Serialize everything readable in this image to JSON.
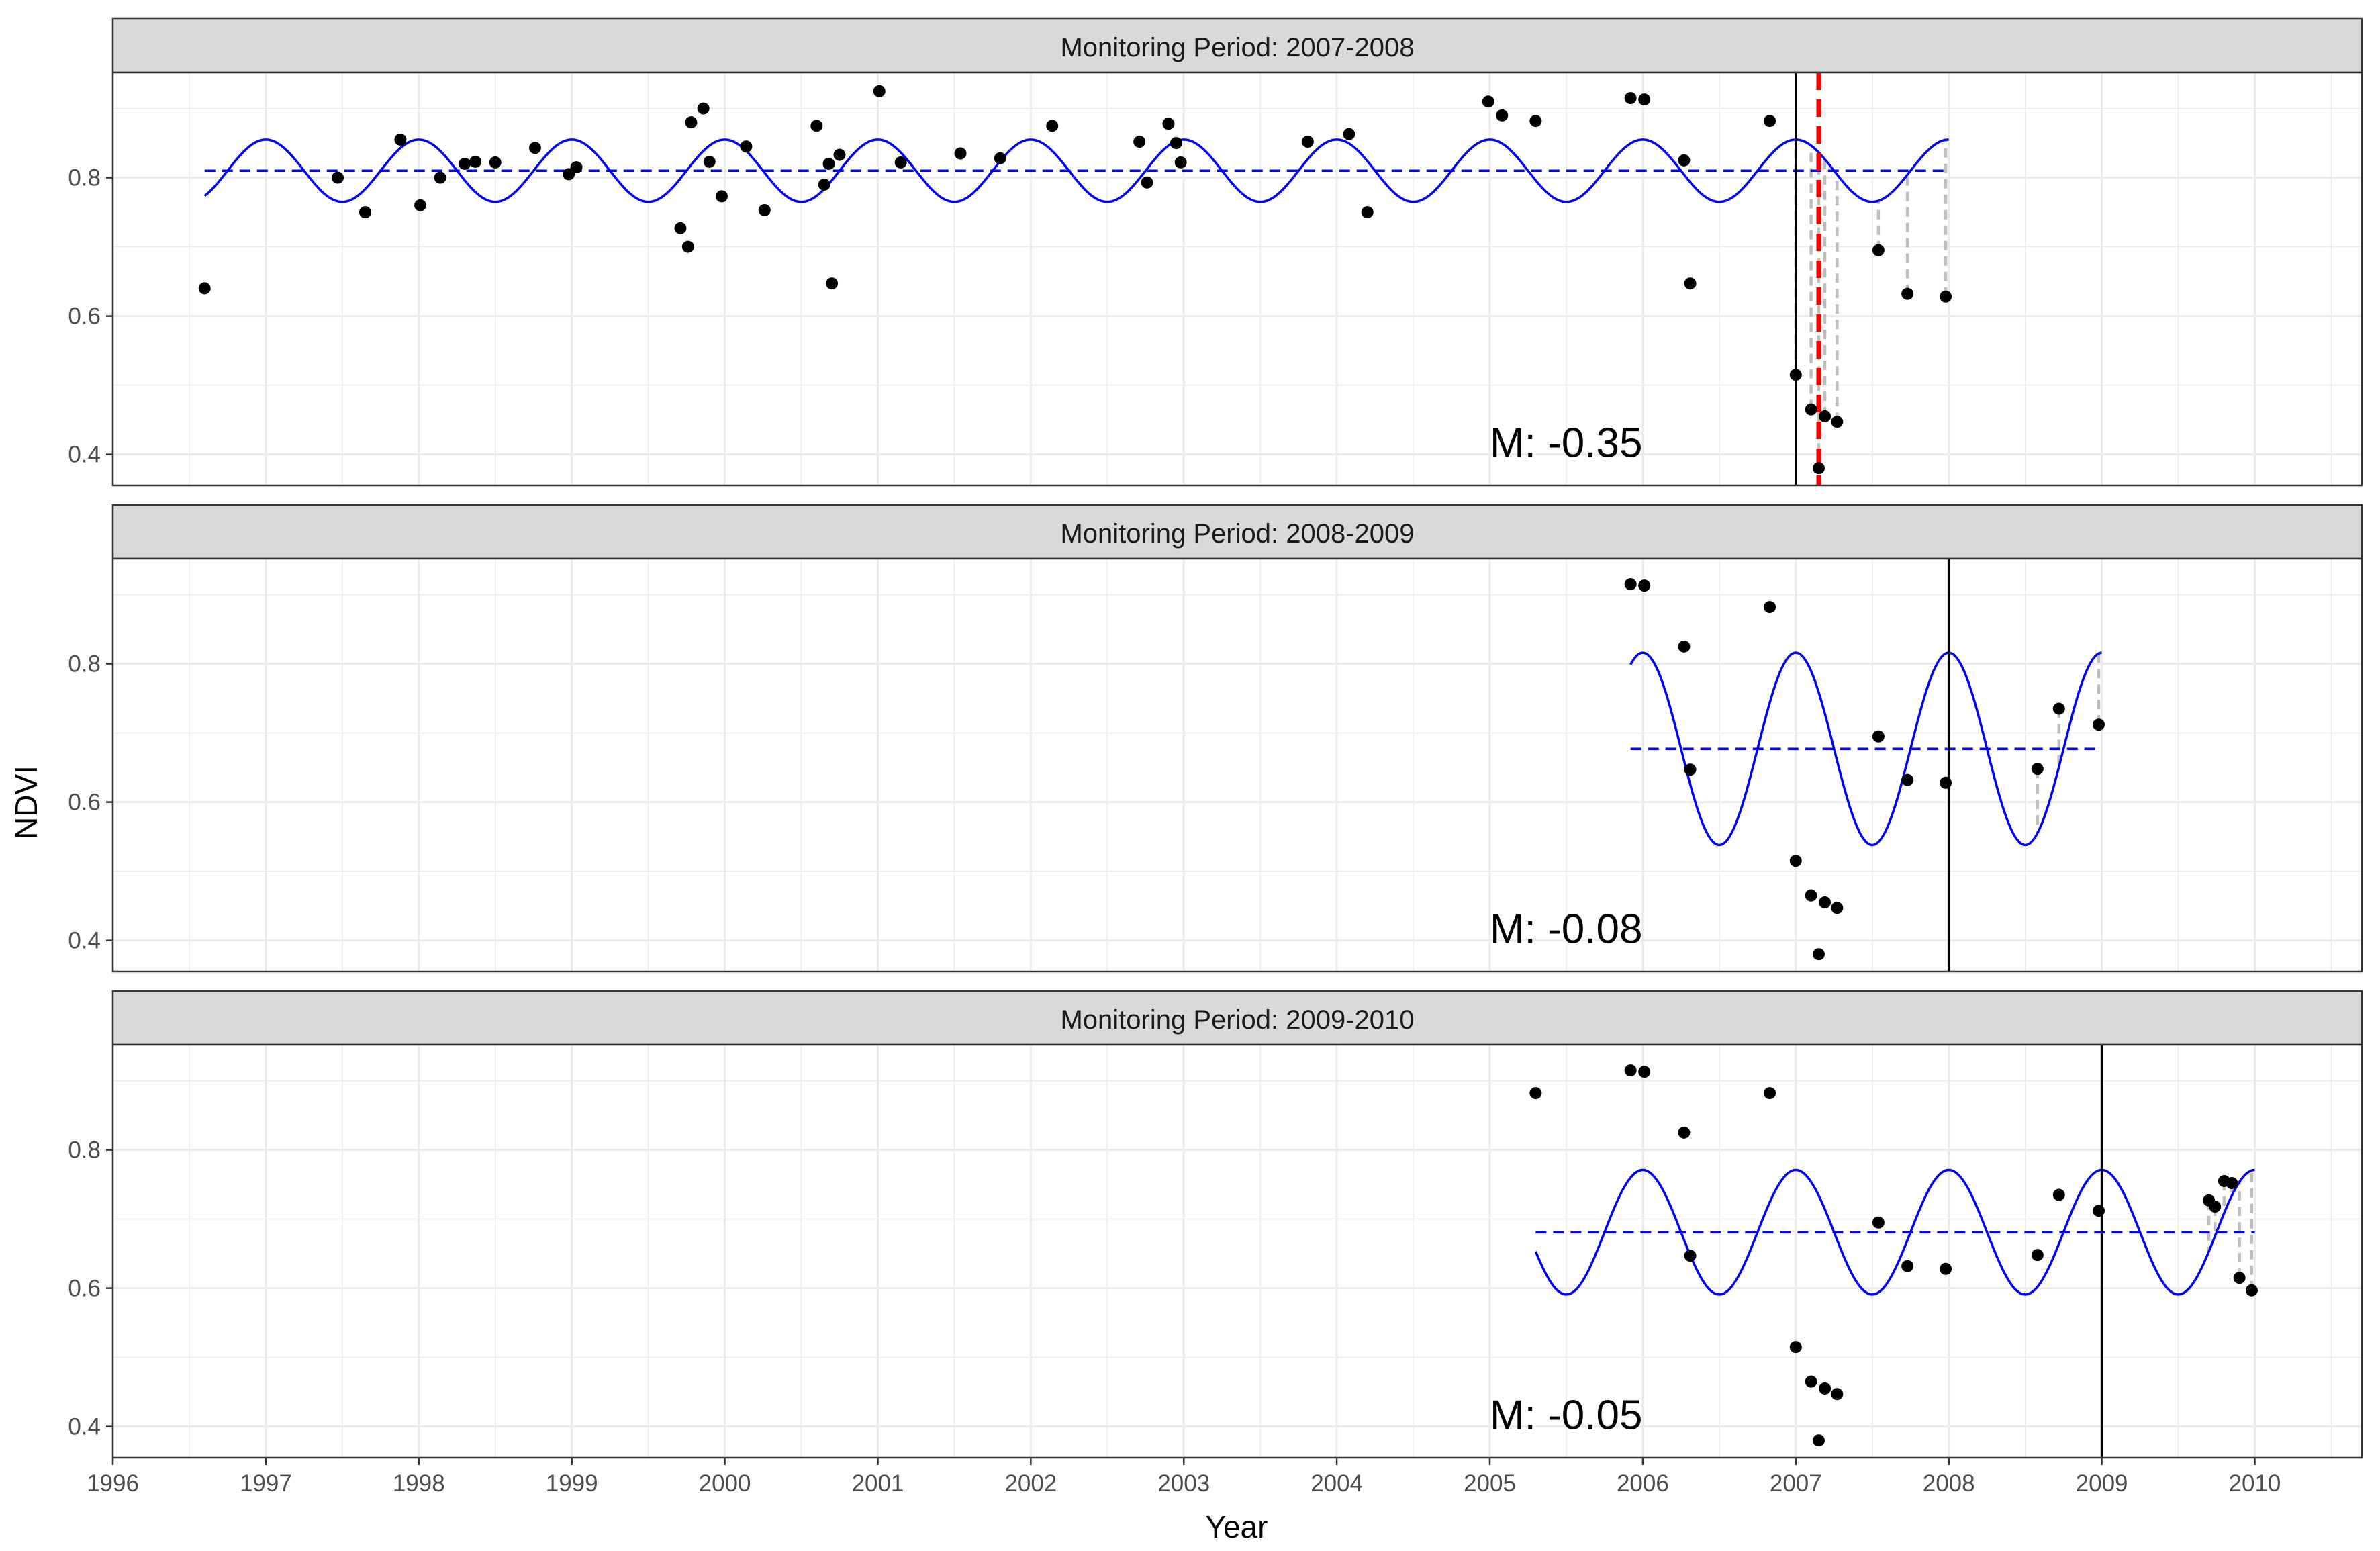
{
  "chart_data": {
    "type": "scatter",
    "xlabel": "Year",
    "ylabel": "NDVI",
    "xlim": [
      1996.0,
      2010.7
    ],
    "ylim": [
      0.355,
      0.952
    ],
    "x_ticks": [
      1996,
      1997,
      1998,
      1999,
      2000,
      2001,
      2002,
      2003,
      2004,
      2005,
      2006,
      2007,
      2008,
      2009,
      2010
    ],
    "y_ticks": [
      0.4,
      0.6,
      0.8
    ],
    "y_tick_labels": [
      "0.4",
      "0.6",
      "0.8"
    ],
    "grid": true,
    "colors": {
      "points": "#000000",
      "fit": "#0000ff",
      "mean": "#0000ff",
      "break": "#ff0000",
      "residual": "#bebebe",
      "strip": "#d9d9d9",
      "grid": "#ebebeb"
    },
    "panels": [
      {
        "label": "Monitoring Period: 2007-2008",
        "annotation": "M: -0.35",
        "history_start": 1996.6,
        "monitor_start": 2007.0,
        "fit_end": 2008.0,
        "mean": 0.81,
        "amplitude": 0.045,
        "break": 2007.15,
        "points": [
          [
            1996.6,
            0.64
          ],
          [
            1997.47,
            0.8
          ],
          [
            1997.65,
            0.75
          ],
          [
            1997.88,
            0.855
          ],
          [
            1998.01,
            0.76
          ],
          [
            1998.14,
            0.8
          ],
          [
            1998.3,
            0.82
          ],
          [
            1998.37,
            0.823
          ],
          [
            1998.5,
            0.822
          ],
          [
            1998.76,
            0.843
          ],
          [
            1998.98,
            0.805
          ],
          [
            1999.03,
            0.815
          ],
          [
            1999.71,
            0.727
          ],
          [
            1999.76,
            0.7
          ],
          [
            1999.78,
            0.88
          ],
          [
            1999.86,
            0.9
          ],
          [
            1999.9,
            0.823
          ],
          [
            1999.98,
            0.773
          ],
          [
            2000.14,
            0.845
          ],
          [
            2000.26,
            0.753
          ],
          [
            2000.6,
            0.875
          ],
          [
            2000.65,
            0.79
          ],
          [
            2000.68,
            0.82
          ],
          [
            2000.7,
            0.647
          ],
          [
            2000.75,
            0.833
          ],
          [
            2001.01,
            0.925
          ],
          [
            2001.15,
            0.822
          ],
          [
            2001.54,
            0.835
          ],
          [
            2001.8,
            0.828
          ],
          [
            2002.14,
            0.875
          ],
          [
            2002.71,
            0.852
          ],
          [
            2002.76,
            0.793
          ],
          [
            2002.9,
            0.878
          ],
          [
            2002.95,
            0.85
          ],
          [
            2002.98,
            0.822
          ],
          [
            2003.81,
            0.852
          ],
          [
            2004.08,
            0.863
          ],
          [
            2004.2,
            0.75
          ],
          [
            2004.99,
            0.91
          ],
          [
            2005.08,
            0.89
          ],
          [
            2005.3,
            0.882
          ],
          [
            2005.92,
            0.915
          ],
          [
            2006.01,
            0.913
          ],
          [
            2006.27,
            0.825
          ],
          [
            2006.31,
            0.647
          ],
          [
            2006.83,
            0.882
          ],
          [
            2007.0,
            0.515
          ],
          [
            2007.1,
            0.465
          ],
          [
            2007.15,
            0.38
          ],
          [
            2007.19,
            0.455
          ],
          [
            2007.27,
            0.447
          ],
          [
            2007.54,
            0.695
          ],
          [
            2007.73,
            0.632
          ],
          [
            2007.98,
            0.628
          ]
        ]
      },
      {
        "label": "Monitoring Period: 2008-2009",
        "annotation": "M: -0.08",
        "history_start": 2005.92,
        "monitor_start": 2008.0,
        "fit_end": 2009.0,
        "mean": 0.677,
        "amplitude": 0.139,
        "points": [
          [
            2005.92,
            0.915
          ],
          [
            2006.01,
            0.913
          ],
          [
            2006.27,
            0.825
          ],
          [
            2006.31,
            0.647
          ],
          [
            2006.83,
            0.882
          ],
          [
            2007.0,
            0.515
          ],
          [
            2007.1,
            0.465
          ],
          [
            2007.15,
            0.38
          ],
          [
            2007.19,
            0.455
          ],
          [
            2007.27,
            0.447
          ],
          [
            2007.54,
            0.695
          ],
          [
            2007.73,
            0.632
          ],
          [
            2007.98,
            0.628
          ],
          [
            2008.58,
            0.648
          ],
          [
            2008.72,
            0.735
          ],
          [
            2008.98,
            0.712
          ]
        ]
      },
      {
        "label": "Monitoring Period: 2009-2010",
        "annotation": "M: -0.05",
        "history_start": 2005.3,
        "monitor_start": 2009.0,
        "fit_end": 2010.0,
        "mean": 0.681,
        "amplitude": 0.09,
        "points": [
          [
            2005.3,
            0.882
          ],
          [
            2005.92,
            0.915
          ],
          [
            2006.01,
            0.913
          ],
          [
            2006.27,
            0.825
          ],
          [
            2006.31,
            0.647
          ],
          [
            2006.83,
            0.882
          ],
          [
            2007.0,
            0.515
          ],
          [
            2007.1,
            0.465
          ],
          [
            2007.15,
            0.38
          ],
          [
            2007.19,
            0.455
          ],
          [
            2007.27,
            0.447
          ],
          [
            2007.54,
            0.695
          ],
          [
            2007.73,
            0.632
          ],
          [
            2007.98,
            0.628
          ],
          [
            2008.58,
            0.648
          ],
          [
            2008.72,
            0.735
          ],
          [
            2008.98,
            0.712
          ],
          [
            2009.7,
            0.727
          ],
          [
            2009.74,
            0.718
          ],
          [
            2009.8,
            0.755
          ],
          [
            2009.85,
            0.752
          ],
          [
            2009.9,
            0.615
          ],
          [
            2009.98,
            0.597
          ]
        ]
      }
    ]
  }
}
